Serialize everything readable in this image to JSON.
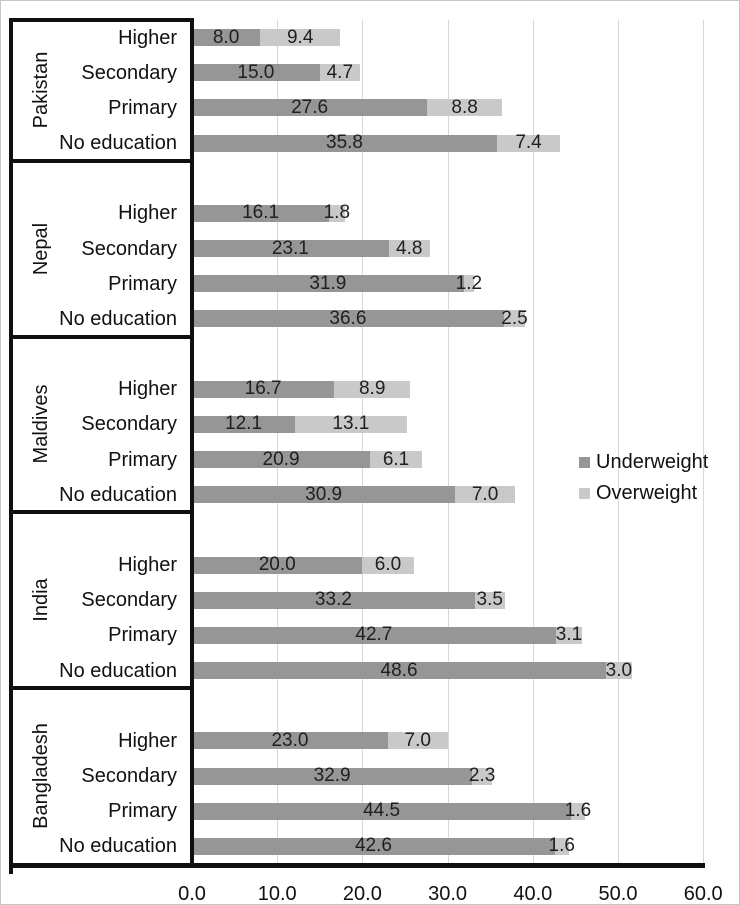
{
  "chart_data": {
    "type": "bar",
    "orientation": "horizontal",
    "stacked": true,
    "title": "",
    "xlabel": "",
    "ylabel": "",
    "xlim": [
      0,
      60
    ],
    "x_tick_labels": [
      "0.0",
      "10.0",
      "20.0",
      "30.0",
      "40.0",
      "50.0",
      "60.0"
    ],
    "grid": true,
    "legend_position": "right",
    "series": [
      {
        "name": "Underweight",
        "color": "#969696"
      },
      {
        "name": "Overweight",
        "color": "#c9c9c9"
      }
    ],
    "groups": [
      {
        "country": "Pakistan",
        "rows": [
          {
            "label": "Higher",
            "underweight": 8.0,
            "overweight": 9.4
          },
          {
            "label": "Secondary",
            "underweight": 15.0,
            "overweight": 4.7
          },
          {
            "label": "Primary",
            "underweight": 27.6,
            "overweight": 8.8
          },
          {
            "label": "No education",
            "underweight": 35.8,
            "overweight": 7.4
          }
        ]
      },
      {
        "country": "Nepal",
        "rows": [
          {
            "label": "Higher",
            "underweight": 16.1,
            "overweight": 1.8
          },
          {
            "label": "Secondary",
            "underweight": 23.1,
            "overweight": 4.8
          },
          {
            "label": "Primary",
            "underweight": 31.9,
            "overweight": 1.2
          },
          {
            "label": "No education",
            "underweight": 36.6,
            "overweight": 2.5
          }
        ]
      },
      {
        "country": "Maldives",
        "rows": [
          {
            "label": "Higher",
            "underweight": 16.7,
            "overweight": 8.9
          },
          {
            "label": "Secondary",
            "underweight": 12.1,
            "overweight": 13.1
          },
          {
            "label": "Primary",
            "underweight": 20.9,
            "overweight": 6.1
          },
          {
            "label": "No education",
            "underweight": 30.9,
            "overweight": 7.0
          }
        ]
      },
      {
        "country": "India",
        "rows": [
          {
            "label": "Higher",
            "underweight": 20.0,
            "overweight": 6.0
          },
          {
            "label": "Secondary",
            "underweight": 33.2,
            "overweight": 3.5
          },
          {
            "label": "Primary",
            "underweight": 42.7,
            "overweight": 3.1
          },
          {
            "label": "No education",
            "underweight": 48.6,
            "overweight": 3.0
          }
        ]
      },
      {
        "country": "Bangladesh",
        "rows": [
          {
            "label": "Higher",
            "underweight": 23.0,
            "overweight": 7.0
          },
          {
            "label": "Secondary",
            "underweight": 32.9,
            "overweight": 2.3
          },
          {
            "label": "Primary",
            "underweight": 44.5,
            "overweight": 1.6
          },
          {
            "label": "No education",
            "underweight": 42.6,
            "overweight": 1.6
          }
        ]
      }
    ]
  }
}
